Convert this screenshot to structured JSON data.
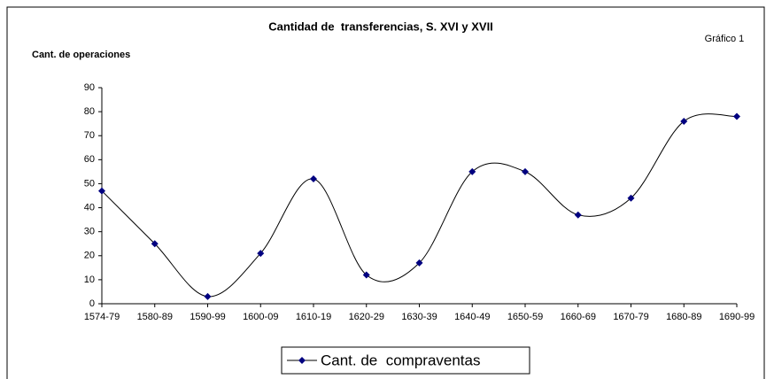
{
  "chart_data": {
    "type": "line",
    "title": "Cantidad de  transferencias, S. XVI y XVII",
    "annotation": "Gráfico 1",
    "y_label": "Cant. de operaciones",
    "categories": [
      "1574-79",
      "1580-89",
      "1590-99",
      "1600-09",
      "1610-19",
      "1620-29",
      "1630-39",
      "1640-49",
      "1650-59",
      "1660-69",
      "1670-79",
      "1680-89",
      "1690-99"
    ],
    "series": [
      {
        "name": "Cant. de  compraventas",
        "color": "#000080",
        "values": [
          47,
          25,
          3,
          21,
          52,
          12,
          17,
          55,
          55,
          37,
          44,
          76,
          78
        ]
      }
    ],
    "ylim": [
      0,
      90
    ],
    "yticks": [
      0,
      10,
      20,
      30,
      40,
      50,
      60,
      70,
      80,
      90
    ],
    "smooth": true,
    "legend": "bottom"
  }
}
